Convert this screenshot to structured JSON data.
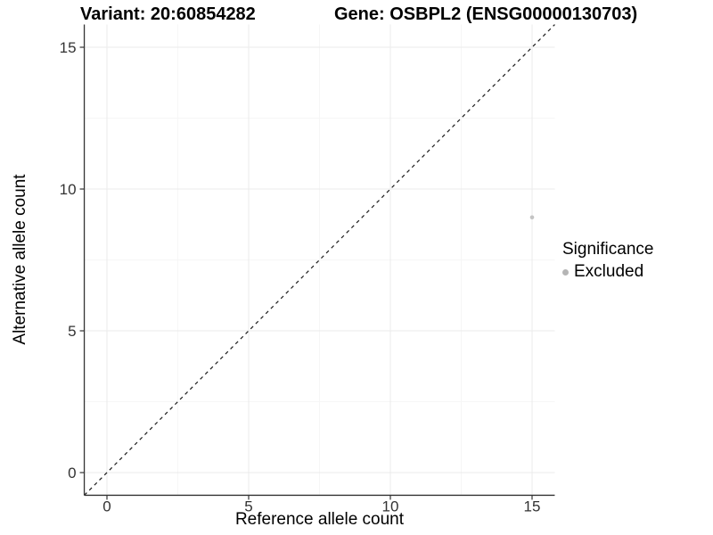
{
  "titles": {
    "variant": "Variant: 20:60854282",
    "gene": "Gene: OSBPL2 (ENSG00000130703)"
  },
  "chart_data": {
    "type": "scatter",
    "title": "Variant: 20:60854282   Gene: OSBPL2 (ENSG00000130703)",
    "xlabel": "Reference allele count",
    "ylabel": "Alternative allele count",
    "xlim": [
      -0.8,
      15.8
    ],
    "ylim": [
      -0.8,
      15.8
    ],
    "xticks": [
      0,
      5,
      10,
      15
    ],
    "yticks": [
      0,
      5,
      10,
      15
    ],
    "xticks_minor": [
      2.5,
      7.5,
      12.5
    ],
    "yticks_minor": [
      2.5,
      7.5,
      12.5
    ],
    "grid": true,
    "points": [
      {
        "x": 15,
        "y": 9,
        "series": "Excluded"
      }
    ],
    "reference_line": {
      "type": "identity",
      "style": "dashed",
      "color": "#1a1a1a"
    },
    "legend": {
      "title": "Significance",
      "position": "right",
      "items": [
        {
          "label": "Excluded",
          "color": "#b5b5b5"
        }
      ]
    },
    "colors": {
      "point": "#c4c4c4",
      "grid_major": "#ebebeb",
      "grid_minor": "#f6f6f6",
      "axis": "#333333",
      "tick_label": "#333333"
    }
  }
}
